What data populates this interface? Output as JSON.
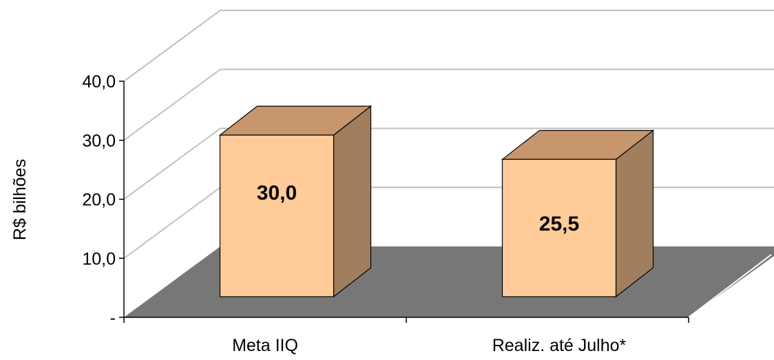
{
  "chart_data": {
    "type": "bar",
    "style": "3d-column",
    "title": "",
    "xlabel": "",
    "ylabel": "R$ bilhões",
    "categories": [
      "Meta IIQ",
      "Realiz. até Julho*"
    ],
    "values": [
      30.0,
      25.5
    ],
    "data_labels": [
      "30,0",
      "25,5"
    ],
    "ylim": [
      0,
      40
    ],
    "y_ticks": [
      {
        "value": 0,
        "label": "-"
      },
      {
        "value": 10,
        "label": "10,0"
      },
      {
        "value": 20,
        "label": "20,0"
      },
      {
        "value": 30,
        "label": "30,0"
      },
      {
        "value": 40,
        "label": "40,0"
      }
    ],
    "grid": true,
    "legend": "none",
    "colors": {
      "bar_front": "#FFCC99",
      "bar_top": "#C8966C",
      "bar_side": "#A07E5E",
      "floor": "#777777",
      "gridline": "#C0C0C0",
      "axis": "#000000"
    }
  }
}
